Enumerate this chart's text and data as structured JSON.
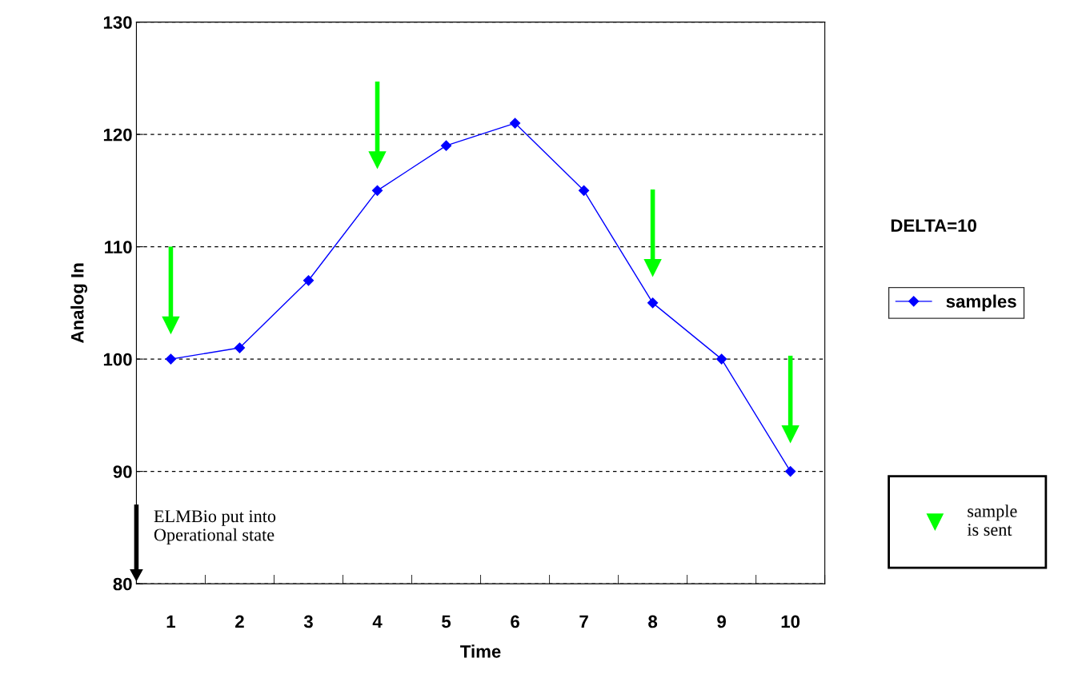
{
  "chart_data": {
    "type": "line",
    "xlabel": "Time",
    "ylabel": "Analog In",
    "categories": [
      "1",
      "2",
      "3",
      "4",
      "5",
      "6",
      "7",
      "8",
      "9",
      "10"
    ],
    "series": [
      {
        "name": "samples",
        "color": "#0000ff",
        "marker": "diamond",
        "values": [
          100,
          101,
          107,
          115,
          119,
          121,
          115,
          105,
          100,
          90
        ]
      },
      {
        "name": "sample\nis sent",
        "type": "scatter",
        "color": "#00ff00",
        "marker": "triangle",
        "values": [
          103,
          null,
          null,
          117.7,
          null,
          null,
          null,
          108.1,
          null,
          93.3
        ]
      }
    ],
    "ylim": [
      80,
      130
    ],
    "yticks": [
      80,
      90,
      100,
      110,
      120,
      130
    ],
    "grid": "y",
    "line_style": "solid",
    "legend": "right",
    "annotations": [
      "DELTA=10",
      "ELMBio put into\nOperational state"
    ]
  }
}
